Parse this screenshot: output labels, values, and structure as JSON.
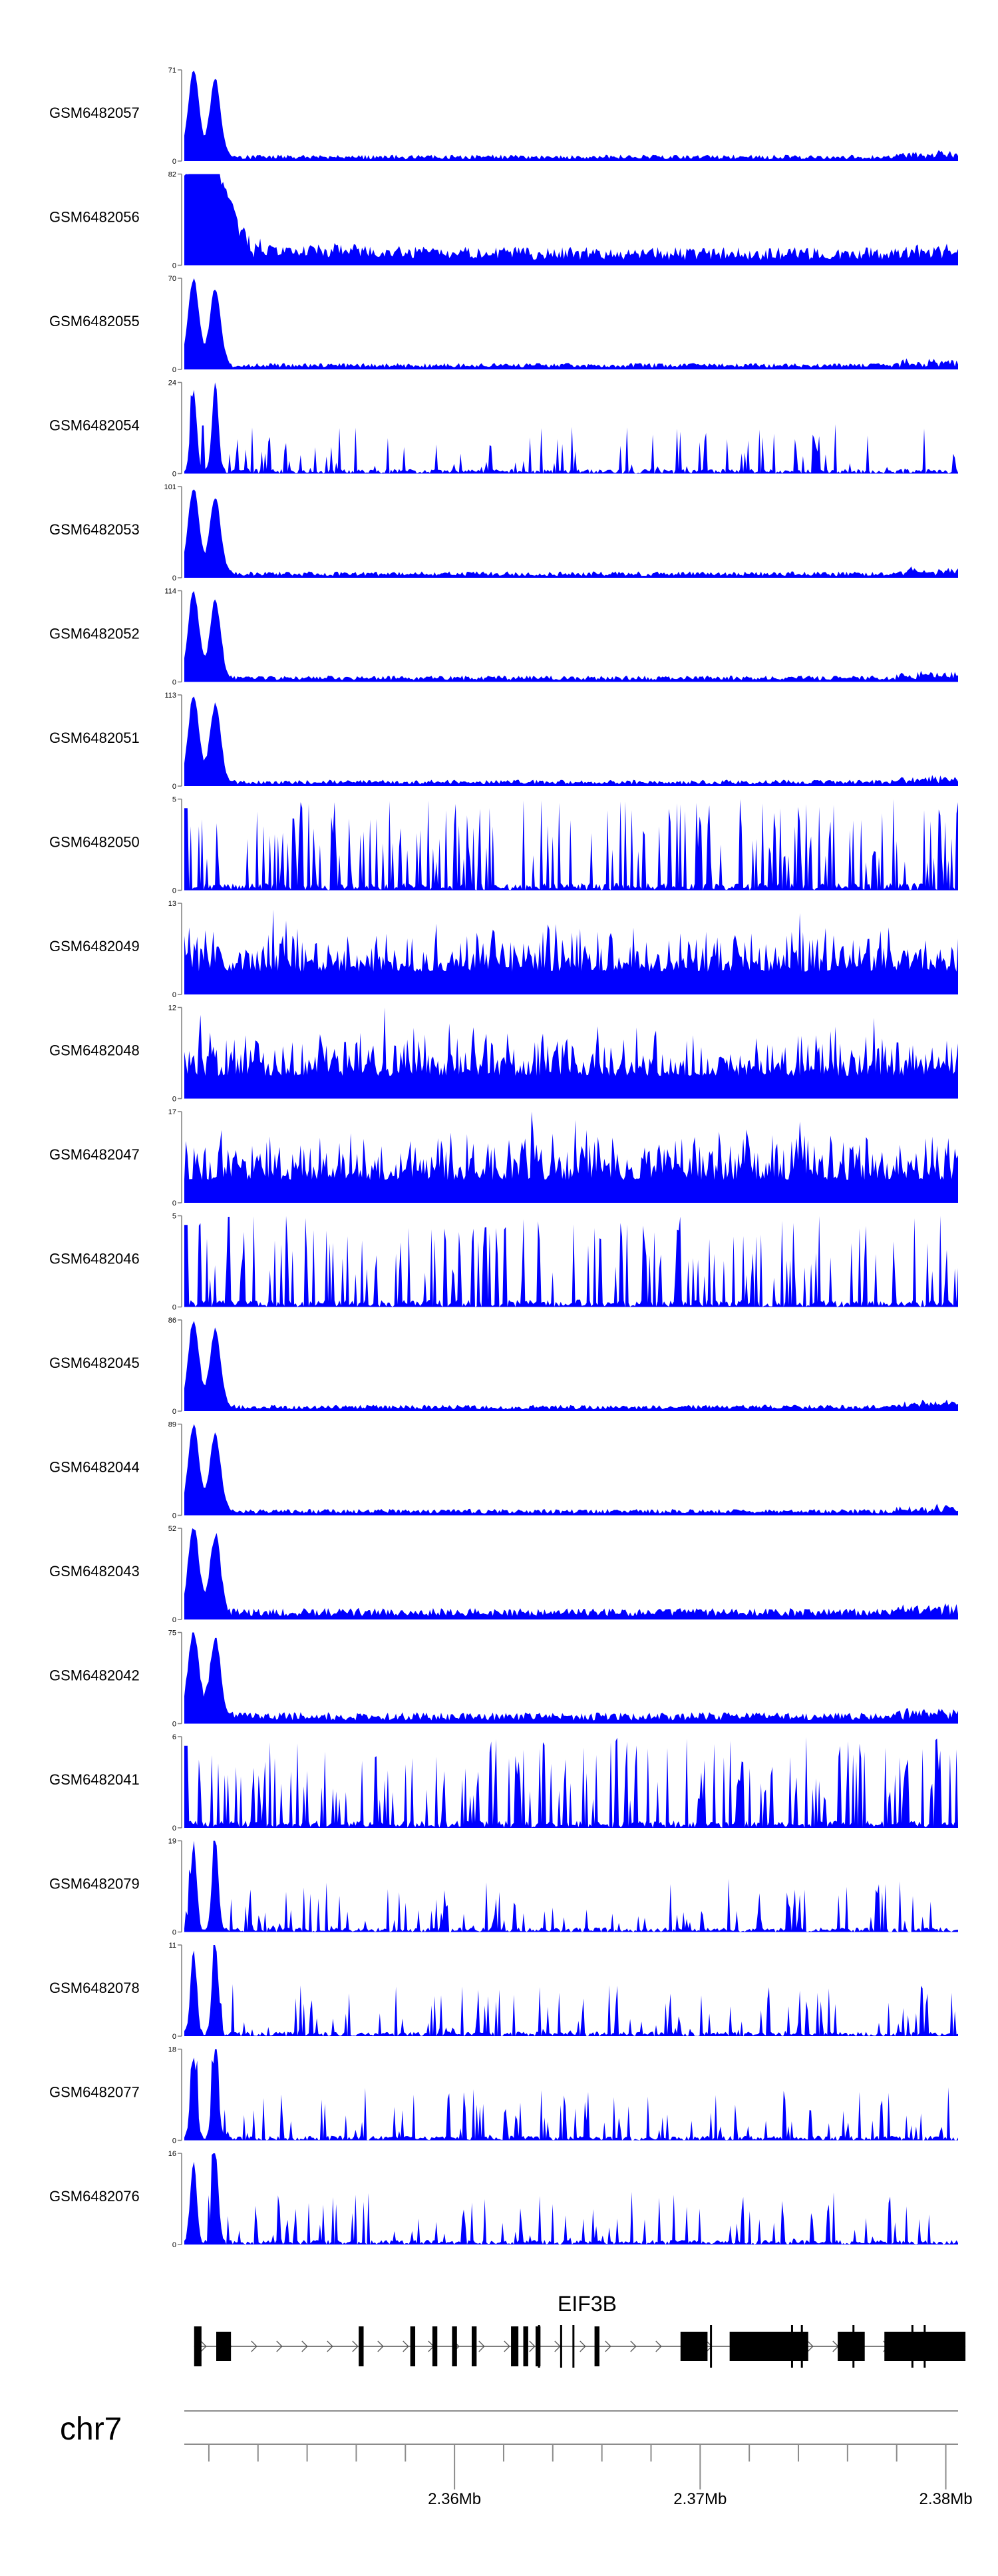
{
  "chart_data": {
    "type": "area",
    "title": "",
    "fill_color": "#0000ff",
    "axis_color": "#7f7f7f",
    "gene_color": "#000000",
    "tracks": [
      {
        "name": "GSM6482057",
        "ymax": 71,
        "profile": "double_peak"
      },
      {
        "name": "GSM6482056",
        "ymax": 82,
        "profile": "broad_peak"
      },
      {
        "name": "GSM6482055",
        "ymax": 70,
        "profile": "double_peak"
      },
      {
        "name": "GSM6482054",
        "ymax": 24,
        "profile": "sparse_peaks"
      },
      {
        "name": "GSM6482053",
        "ymax": 101,
        "profile": "double_peak"
      },
      {
        "name": "GSM6482052",
        "ymax": 114,
        "profile": "double_peak"
      },
      {
        "name": "GSM6482051",
        "ymax": 113,
        "profile": "double_peak"
      },
      {
        "name": "GSM6482050",
        "ymax": 5,
        "profile": "noise"
      },
      {
        "name": "GSM6482049",
        "ymax": 13,
        "profile": "dense_noise"
      },
      {
        "name": "GSM6482048",
        "ymax": 12,
        "profile": "dense_noise"
      },
      {
        "name": "GSM6482047",
        "ymax": 17,
        "profile": "dense_noise"
      },
      {
        "name": "GSM6482046",
        "ymax": 5,
        "profile": "noise"
      },
      {
        "name": "GSM6482045",
        "ymax": 86,
        "profile": "double_peak"
      },
      {
        "name": "GSM6482044",
        "ymax": 89,
        "profile": "double_peak"
      },
      {
        "name": "GSM6482043",
        "ymax": 52,
        "profile": "double_peak_tail"
      },
      {
        "name": "GSM6482042",
        "ymax": 75,
        "profile": "double_peak_tail"
      },
      {
        "name": "GSM6482041",
        "ymax": 6,
        "profile": "noise"
      },
      {
        "name": "GSM6482079",
        "ymax": 19,
        "profile": "sparse_peaks"
      },
      {
        "name": "GSM6482078",
        "ymax": 11,
        "profile": "sparse_peaks"
      },
      {
        "name": "GSM6482077",
        "ymax": 18,
        "profile": "sparse_peaks"
      },
      {
        "name": "GSM6482076",
        "ymax": 16,
        "profile": "sparse_peaks"
      }
    ],
    "gene": {
      "label": "EIF3B",
      "strand": "+",
      "start": 2.3494,
      "end": 2.3808,
      "exons": [
        [
          2.3494,
          2.3497
        ],
        [
          2.3503,
          2.3509
        ],
        [
          2.3561,
          2.3563
        ],
        [
          2.3582,
          2.3584
        ],
        [
          2.3591,
          2.3593
        ],
        [
          2.3599,
          2.3601
        ],
        [
          2.3607,
          2.3609
        ],
        [
          2.3623,
          2.3626
        ],
        [
          2.3628,
          2.363
        ],
        [
          2.3633,
          2.3635
        ],
        [
          2.3657,
          2.3659
        ],
        [
          2.3692,
          2.3703
        ],
        [
          2.3712,
          2.3744
        ],
        [
          2.3756,
          2.3767
        ],
        [
          2.3775,
          2.3808
        ]
      ]
    },
    "axis": {
      "chrom_label": "chr7",
      "xlim": [
        2.349,
        2.3805
      ],
      "tick_step": 0.002,
      "major_ticks": [
        2.36,
        2.37,
        2.38
      ],
      "major_tick_labels": [
        "2.36Mb",
        "2.37Mb",
        "2.38Mb"
      ]
    }
  }
}
